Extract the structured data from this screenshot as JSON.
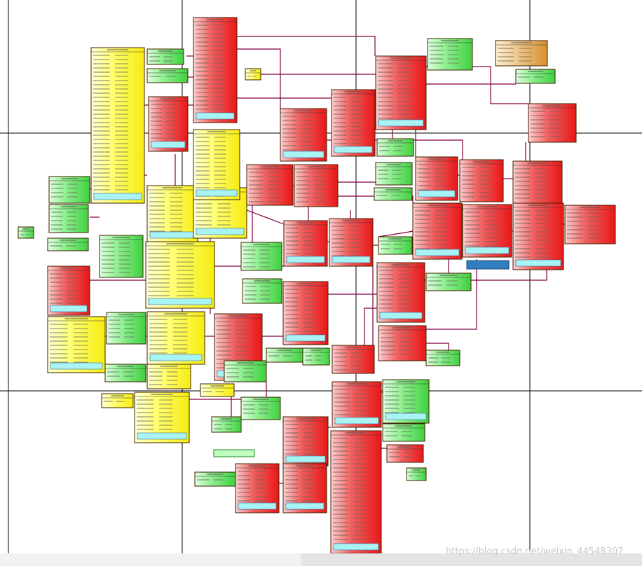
{
  "watermark": "https://blog.csdn.net/weixin_44548307"
}
